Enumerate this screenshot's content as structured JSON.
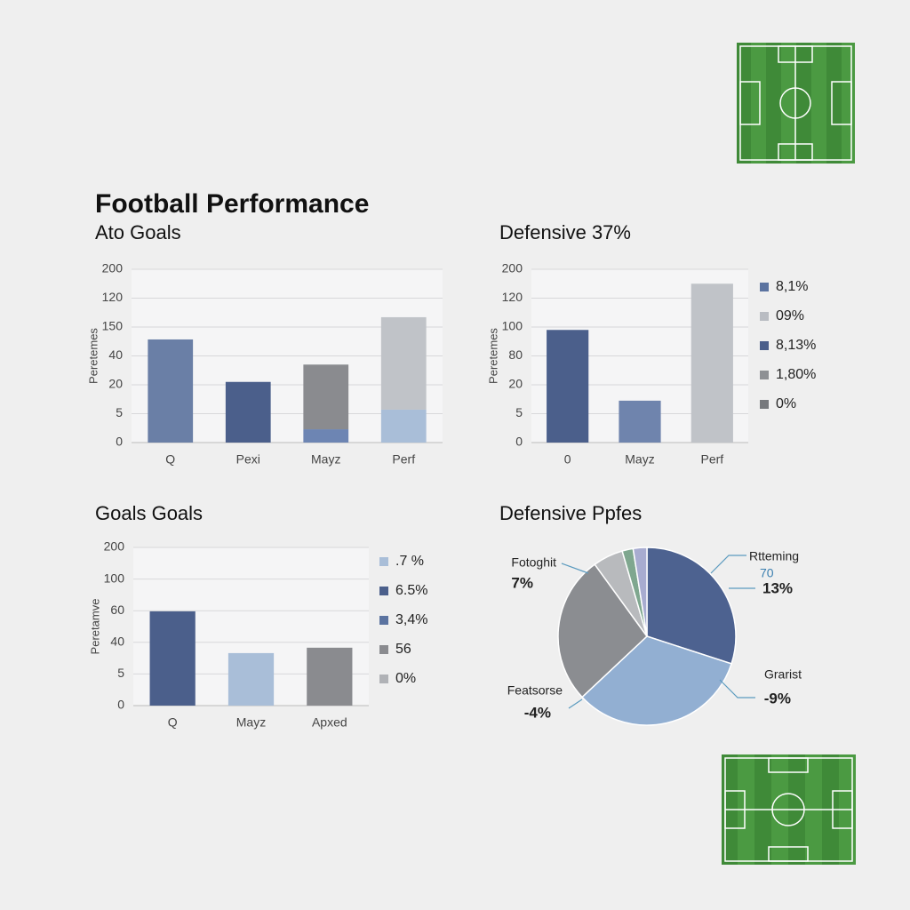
{
  "header": {
    "title": "Football Performance"
  },
  "chart_data": [
    {
      "type": "bar",
      "title": "Ato Goals",
      "ylabel": "Peretemes",
      "categories": [
        "Q",
        "Pexi",
        "Mayz",
        "Perf"
      ],
      "series": [
        {
          "values": [
            3.57,
            2.1,
            0.46,
            1.14
          ],
          "colors": [
            "#6a7fa6",
            "#4b5f8b",
            "#6d85b3",
            "#a9bed8"
          ]
        },
        {
          "values": [
            null,
            null,
            2.24,
            3.2
          ],
          "colors": [
            null,
            null,
            "#8a8b8f",
            "#c0c3c8"
          ]
        }
      ],
      "ylim": [
        0,
        6
      ],
      "yticks": [
        {
          "value": 0,
          "label": "0"
        },
        {
          "value": 1,
          "label": "5"
        },
        {
          "value": 2,
          "label": "20"
        },
        {
          "value": 3,
          "label": "40"
        },
        {
          "value": 4,
          "label": "150"
        },
        {
          "value": 5,
          "label": "120"
        },
        {
          "value": 6,
          "label": "200"
        }
      ],
      "grid": true
    },
    {
      "type": "bar",
      "title": "Defensive 37%",
      "ylabel": "Peretemes",
      "categories": [
        "0",
        "Mayz",
        "Perf"
      ],
      "series": [
        {
          "values": [
            3.9,
            1.45,
            5.5
          ],
          "colors": [
            "#4b5f8b",
            "#6f84ad",
            "#c0c3c8"
          ]
        }
      ],
      "ylim": [
        0,
        6
      ],
      "yticks": [
        {
          "value": 0,
          "label": "0"
        },
        {
          "value": 1,
          "label": "5"
        },
        {
          "value": 2,
          "label": "20"
        },
        {
          "value": 3,
          "label": "80"
        },
        {
          "value": 4,
          "label": "100"
        },
        {
          "value": 5,
          "label": "120"
        },
        {
          "value": 6,
          "label": "200"
        }
      ],
      "grid": true,
      "legend": [
        {
          "label": "8,1%",
          "color": "#5b73a0"
        },
        {
          "label": "09%",
          "color": "#b9bcc2"
        },
        {
          "label": "8,13%",
          "color": "#4b5f8b"
        },
        {
          "label": "1,80%",
          "color": "#8e9094"
        },
        {
          "label": "0%",
          "color": "#77797d"
        }
      ]
    },
    {
      "type": "bar",
      "title": "Goals Goals",
      "ylabel": "Peretamve",
      "categories": [
        "Q",
        "Mayz",
        "Apxed"
      ],
      "series": [
        {
          "values": [
            2.98,
            1.66,
            1.83
          ],
          "colors": [
            "#4b5f8b",
            "#a9bed8",
            "#8a8b8f"
          ]
        }
      ],
      "ylim": [
        0,
        5
      ],
      "yticks": [
        {
          "value": 0,
          "label": "0"
        },
        {
          "value": 1,
          "label": "5"
        },
        {
          "value": 2,
          "label": "40"
        },
        {
          "value": 3,
          "label": "60"
        },
        {
          "value": 4,
          "label": "100"
        },
        {
          "value": 5,
          "label": "200"
        }
      ],
      "grid": true,
      "legend": [
        {
          "label": ".7 %",
          "color": "#a9bed8"
        },
        {
          "label": "6.5%",
          "color": "#4b5f8b"
        },
        {
          "label": "3,4%",
          "color": "#5b73a0"
        },
        {
          "label": "56",
          "color": "#8a8b8f"
        },
        {
          "label": "0%",
          "color": "#b0b2b6"
        }
      ]
    },
    {
      "type": "pie",
      "title": "Defensive Ppfes",
      "values": [
        30,
        33,
        27,
        5.5,
        2,
        2.5
      ],
      "colors": [
        "#4d6290",
        "#92afd2",
        "#8b8d91",
        "#b8babd",
        "#7fa78f",
        "#a8acd0"
      ],
      "annotations": [
        {
          "label": "Rtteming",
          "text": "70",
          "value": "13%"
        },
        {
          "label": "Grarist",
          "value": "-9%"
        },
        {
          "label": "Featsorse",
          "value": "-4%"
        },
        {
          "label": "Fotoghit",
          "value": "7%"
        }
      ]
    }
  ]
}
